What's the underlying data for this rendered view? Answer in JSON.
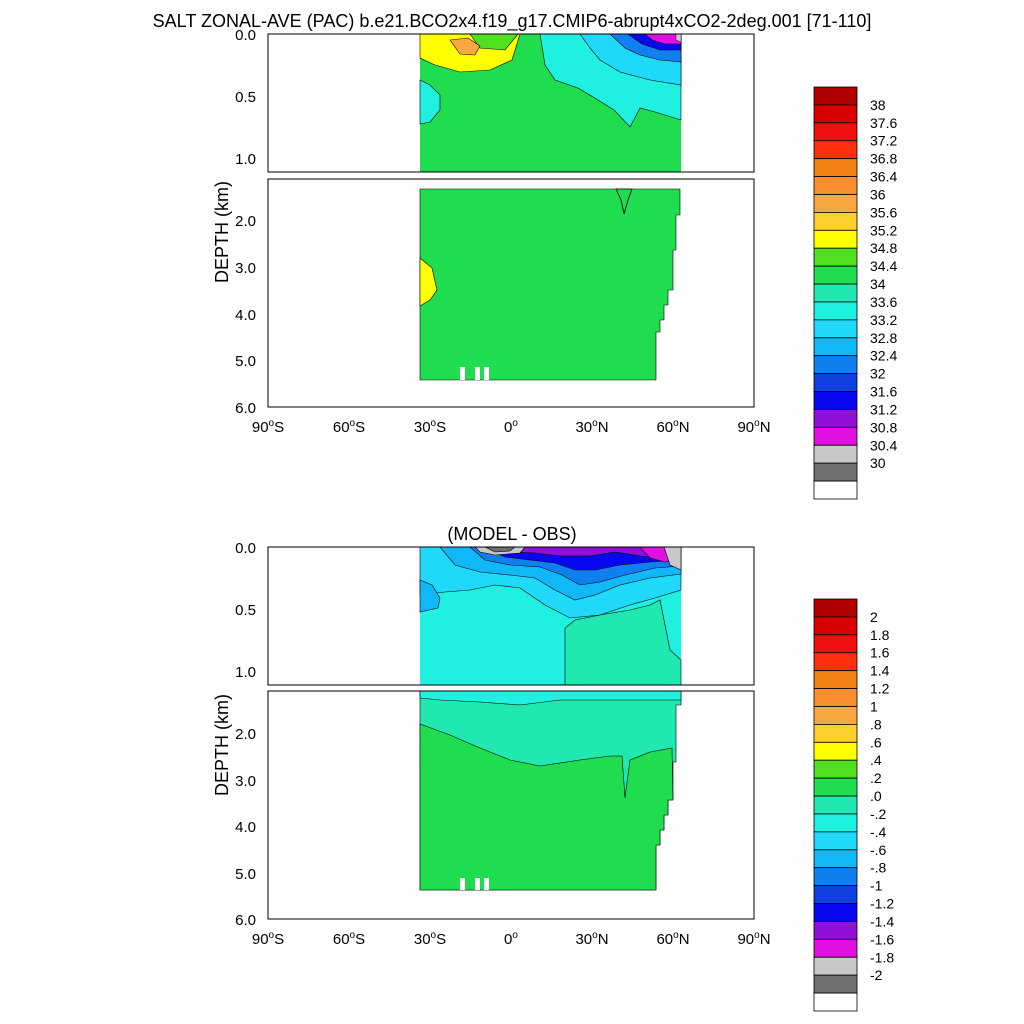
{
  "chart_data": [
    {
      "type": "heatmap",
      "title": "SALT ZONAL-AVE (PAC) b.e21.BCO2x4.f19_g17.CMIP6-abrupt4xCO2-2deg.001 [71-110]",
      "ylabel": "DEPTH (km)",
      "xlabel": "",
      "x_range": [
        -90,
        90
      ],
      "y_range_km": [
        0,
        6
      ],
      "y_ticks_upper": [
        "0.0",
        "0.5",
        "1.0"
      ],
      "y_ticks_lower": [
        "2.0",
        "3.0",
        "4.0",
        "5.0",
        "6.0"
      ],
      "x_ticks": [
        {
          "num": "90",
          "hem": "S"
        },
        {
          "num": "60",
          "hem": "S"
        },
        {
          "num": "30",
          "hem": "S"
        },
        {
          "num": "0",
          "hem": ""
        },
        {
          "num": "30",
          "hem": "N"
        },
        {
          "num": "60",
          "hem": "N"
        },
        {
          "num": "90",
          "hem": "N"
        }
      ],
      "colorbar": {
        "levels": [
          "38",
          "37.6",
          "37.2",
          "36.8",
          "36.4",
          "36",
          "35.6",
          "35.2",
          "34.8",
          "34.4",
          "34",
          "33.6",
          "33.2",
          "32.8",
          "32.4",
          "32",
          "31.6",
          "31.2",
          "30.8",
          "30.4",
          "30"
        ],
        "colors": [
          "#b00000",
          "#d80000",
          "#f01010",
          "#ff3010",
          "#f08010",
          "#f89030",
          "#f8a840",
          "#ffd030",
          "#ffff00",
          "#50e020",
          "#20dd50",
          "#20e8b0",
          "#20f0e0",
          "#20d8f8",
          "#10b8f8",
          "#1080f0",
          "#1040e0",
          "#0808f0",
          "#9010d8",
          "#e010e0",
          "#c8c8c8",
          "#707070",
          "#ffffff"
        ]
      }
    },
    {
      "type": "heatmap",
      "title": "(MODEL - OBS)",
      "ylabel": "DEPTH (km)",
      "xlabel": "",
      "x_range": [
        -90,
        90
      ],
      "y_range_km": [
        0,
        6
      ],
      "y_ticks_upper": [
        "0.0",
        "0.5",
        "1.0"
      ],
      "y_ticks_lower": [
        "2.0",
        "3.0",
        "4.0",
        "5.0",
        "6.0"
      ],
      "x_ticks": [
        {
          "num": "90",
          "hem": "S"
        },
        {
          "num": "60",
          "hem": "S"
        },
        {
          "num": "30",
          "hem": "S"
        },
        {
          "num": "0",
          "hem": ""
        },
        {
          "num": "30",
          "hem": "N"
        },
        {
          "num": "60",
          "hem": "N"
        },
        {
          "num": "90",
          "hem": "N"
        }
      ],
      "colorbar": {
        "levels": [
          "2",
          "1.8",
          "1.6",
          "1.4",
          "1.2",
          "1",
          ".8",
          ".6",
          ".4",
          ".2",
          ".0",
          "-.2",
          "-.4",
          "-.6",
          "-.8",
          "-1",
          "-1.2",
          "-1.4",
          "-1.6",
          "-1.8",
          "-2"
        ],
        "colors": [
          "#b00000",
          "#d80000",
          "#f01010",
          "#ff3010",
          "#f08010",
          "#f89030",
          "#f8a840",
          "#ffd030",
          "#ffff00",
          "#50e020",
          "#20dd50",
          "#20e8b0",
          "#20f0e0",
          "#20d8f8",
          "#10b8f8",
          "#1080f0",
          "#1040e0",
          "#0808f0",
          "#9010d8",
          "#e010e0",
          "#c8c8c8",
          "#707070",
          "#ffffff"
        ]
      }
    }
  ]
}
